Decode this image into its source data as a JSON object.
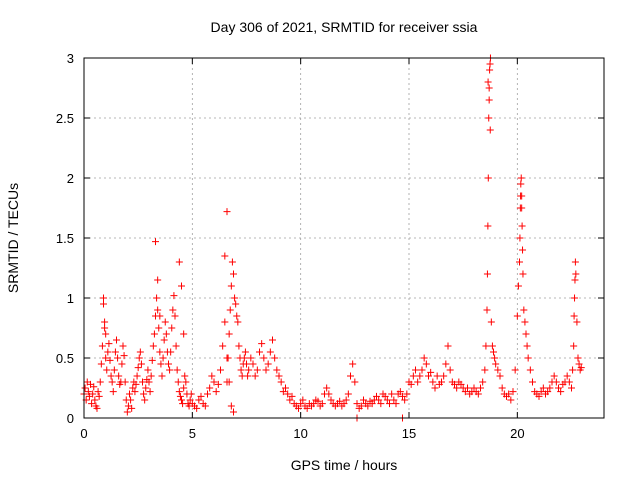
{
  "chart_data": {
    "type": "scatter",
    "title": "Day 306 of 2021, SRMTID for receiver ssia",
    "xlabel": "GPS time / hours",
    "ylabel": "SRMTID / TECUs",
    "xlim": [
      0,
      24
    ],
    "ylim": [
      0,
      3
    ],
    "grid": true,
    "marker": "+",
    "color": "#ff0000",
    "xticks": [
      0,
      5,
      10,
      15,
      20
    ],
    "xtick_labels": [
      "0",
      "5",
      "10",
      "15",
      "20"
    ],
    "yticks": [
      0,
      0.5,
      1,
      1.5,
      2,
      2.5,
      3
    ],
    "ytick_labels": [
      "0",
      "0.5",
      "1",
      "1.5",
      "2",
      "2.5",
      "3"
    ],
    "series": [
      {
        "name": "SRMTID",
        "x": [
          0.0,
          0.05,
          0.1,
          0.15,
          0.2,
          0.25,
          0.3,
          0.35,
          0.4,
          0.45,
          0.5,
          0.55,
          0.6,
          0.65,
          0.7,
          0.75,
          0.8,
          0.85,
          0.9,
          0.95,
          1.0,
          1.05,
          1.1,
          1.15,
          1.2,
          1.25,
          1.3,
          1.35,
          1.4,
          1.45,
          1.5,
          1.55,
          1.6,
          1.65,
          1.7,
          1.75,
          1.8,
          1.85,
          1.9,
          1.95,
          2.0,
          2.05,
          2.1,
          2.15,
          2.2,
          2.25,
          2.3,
          2.35,
          2.4,
          2.45,
          2.5,
          2.55,
          2.6,
          2.65,
          2.7,
          2.75,
          2.8,
          2.85,
          2.9,
          2.95,
          3.0,
          3.05,
          3.1,
          3.15,
          3.2,
          3.25,
          3.3,
          3.35,
          3.4,
          3.45,
          3.5,
          3.55,
          3.6,
          3.65,
          3.7,
          3.75,
          3.8,
          3.85,
          3.9,
          3.95,
          4.0,
          4.05,
          4.1,
          4.15,
          4.2,
          4.25,
          4.3,
          4.35,
          4.4,
          4.45,
          4.5,
          4.55,
          4.6,
          4.65,
          4.7,
          4.75,
          4.8,
          4.85,
          4.9,
          4.95,
          5.0,
          5.1,
          5.2,
          5.3,
          5.4,
          5.5,
          5.6,
          5.7,
          5.8,
          5.9,
          6.0,
          6.1,
          6.2,
          6.3,
          6.4,
          6.5,
          6.6,
          6.7,
          6.8,
          6.9,
          6.6,
          6.65,
          6.7,
          6.75,
          6.8,
          6.85,
          6.9,
          6.95,
          7.0,
          7.05,
          7.1,
          7.15,
          7.2,
          7.25,
          7.3,
          7.35,
          7.4,
          7.45,
          7.5,
          7.55,
          7.6,
          7.7,
          7.8,
          7.9,
          8.0,
          8.1,
          8.2,
          8.3,
          8.4,
          8.5,
          8.6,
          8.7,
          8.8,
          8.9,
          9.0,
          9.1,
          9.2,
          9.3,
          9.4,
          9.5,
          9.6,
          9.7,
          9.8,
          9.9,
          10.0,
          10.1,
          10.2,
          10.3,
          10.4,
          10.5,
          10.6,
          10.7,
          10.8,
          10.9,
          11.0,
          11.1,
          11.2,
          11.3,
          11.4,
          11.5,
          11.6,
          11.7,
          11.8,
          11.9,
          12.0,
          12.1,
          12.2,
          12.3,
          12.4,
          12.5,
          12.6,
          12.7,
          12.8,
          12.9,
          13.0,
          13.1,
          13.2,
          13.3,
          13.4,
          13.5,
          13.6,
          13.7,
          13.8,
          13.9,
          14.0,
          14.1,
          14.2,
          14.3,
          14.4,
          14.5,
          14.6,
          14.7,
          14.8,
          14.9,
          15.0,
          15.1,
          15.2,
          15.3,
          15.4,
          15.5,
          15.6,
          15.7,
          15.8,
          15.9,
          16.0,
          16.1,
          16.2,
          16.3,
          16.4,
          16.5,
          16.6,
          16.7,
          16.8,
          16.9,
          17.0,
          17.1,
          17.2,
          17.3,
          17.4,
          17.5,
          17.6,
          17.7,
          17.8,
          17.9,
          18.0,
          18.1,
          18.2,
          18.3,
          18.4,
          18.5,
          18.55,
          18.6,
          18.62,
          18.64,
          18.66,
          18.68,
          18.7,
          18.72,
          18.74,
          18.76,
          18.8,
          18.85,
          18.9,
          18.95,
          19.0,
          19.1,
          19.2,
          19.3,
          19.4,
          19.5,
          19.6,
          19.7,
          19.8,
          19.9,
          20.0,
          20.05,
          20.1,
          20.12,
          20.14,
          20.16,
          20.18,
          20.2,
          20.22,
          20.24,
          20.26,
          20.3,
          20.35,
          20.4,
          20.45,
          20.5,
          20.6,
          20.7,
          20.8,
          20.9,
          21.0,
          21.1,
          21.2,
          21.3,
          21.4,
          21.5,
          21.6,
          21.7,
          21.8,
          21.9,
          22.0,
          22.1,
          22.2,
          22.3,
          22.4,
          22.5,
          22.55,
          22.6,
          22.62,
          22.64,
          22.66,
          22.68,
          22.7,
          22.75,
          22.8,
          22.85,
          22.9,
          22.95,
          0.9,
          0.95,
          1.0,
          3.3,
          3.4,
          3.5,
          4.4,
          4.5,
          4.6,
          6.5,
          6.6,
          12.6,
          14.7,
          18.65,
          18.7,
          18.75,
          20.15,
          20.2
        ],
        "y": [
          0.2,
          0.25,
          0.15,
          0.3,
          0.22,
          0.18,
          0.28,
          0.12,
          0.2,
          0.26,
          0.15,
          0.1,
          0.08,
          0.22,
          0.18,
          0.3,
          0.45,
          0.6,
          0.95,
          0.75,
          0.5,
          0.4,
          0.55,
          0.62,
          0.48,
          0.35,
          0.3,
          0.22,
          0.4,
          0.55,
          0.65,
          0.5,
          0.35,
          0.28,
          0.3,
          0.45,
          0.6,
          0.52,
          0.3,
          0.15,
          0.05,
          0.1,
          0.2,
          0.15,
          0.08,
          0.25,
          0.3,
          0.22,
          0.28,
          0.35,
          0.42,
          0.5,
          0.55,
          0.45,
          0.3,
          0.2,
          0.15,
          0.25,
          0.32,
          0.4,
          0.3,
          0.22,
          0.35,
          0.48,
          0.6,
          0.7,
          0.85,
          1.0,
          0.9,
          0.75,
          0.55,
          0.45,
          0.35,
          0.5,
          0.65,
          0.8,
          0.7,
          0.55,
          0.45,
          0.4,
          0.55,
          0.75,
          0.9,
          1.02,
          0.85,
          0.6,
          0.4,
          0.3,
          0.22,
          0.18,
          0.15,
          0.12,
          0.25,
          0.35,
          0.3,
          0.2,
          0.12,
          0.1,
          0.15,
          0.2,
          0.12,
          0.1,
          0.08,
          0.15,
          0.18,
          0.12,
          0.1,
          0.2,
          0.25,
          0.35,
          0.3,
          0.22,
          0.28,
          0.4,
          0.6,
          0.8,
          0.5,
          0.3,
          0.1,
          0.05,
          0.3,
          0.5,
          0.7,
          0.9,
          1.1,
          1.3,
          1.2,
          1.0,
          0.95,
          0.85,
          0.8,
          0.6,
          0.5,
          0.4,
          0.35,
          0.45,
          0.5,
          0.55,
          0.45,
          0.35,
          0.4,
          0.5,
          0.45,
          0.35,
          0.4,
          0.55,
          0.62,
          0.5,
          0.4,
          0.45,
          0.55,
          0.65,
          0.5,
          0.4,
          0.35,
          0.3,
          0.22,
          0.25,
          0.2,
          0.15,
          0.18,
          0.12,
          0.1,
          0.08,
          0.12,
          0.15,
          0.1,
          0.08,
          0.12,
          0.1,
          0.12,
          0.15,
          0.14,
          0.1,
          0.12,
          0.2,
          0.25,
          0.2,
          0.15,
          0.12,
          0.1,
          0.12,
          0.14,
          0.1,
          0.12,
          0.15,
          0.2,
          0.35,
          0.45,
          0.3,
          0.12,
          0.08,
          0.1,
          0.15,
          0.12,
          0.1,
          0.14,
          0.12,
          0.15,
          0.18,
          0.15,
          0.12,
          0.2,
          0.18,
          0.15,
          0.12,
          0.2,
          0.15,
          0.12,
          0.2,
          0.22,
          0.18,
          0.15,
          0.2,
          0.3,
          0.28,
          0.35,
          0.4,
          0.3,
          0.35,
          0.4,
          0.5,
          0.45,
          0.35,
          0.38,
          0.3,
          0.25,
          0.35,
          0.28,
          0.3,
          0.35,
          0.45,
          0.6,
          0.4,
          0.3,
          0.28,
          0.25,
          0.3,
          0.28,
          0.25,
          0.22,
          0.25,
          0.2,
          0.22,
          0.25,
          0.22,
          0.2,
          0.25,
          0.3,
          0.4,
          0.6,
          0.9,
          1.2,
          1.6,
          2.0,
          2.5,
          2.75,
          2.9,
          2.95,
          3.0,
          0.8,
          0.6,
          0.55,
          0.5,
          0.45,
          0.4,
          0.35,
          0.25,
          0.2,
          0.18,
          0.2,
          0.15,
          0.22,
          0.4,
          0.85,
          1.1,
          1.3,
          1.5,
          1.75,
          1.95,
          2.0,
          1.85,
          1.6,
          1.4,
          1.2,
          0.9,
          0.8,
          0.7,
          0.6,
          0.5,
          0.4,
          0.3,
          0.22,
          0.2,
          0.18,
          0.22,
          0.25,
          0.2,
          0.22,
          0.25,
          0.3,
          0.35,
          0.3,
          0.25,
          0.22,
          0.28,
          0.3,
          0.35,
          0.3,
          0.25,
          0.4,
          0.6,
          0.85,
          1.0,
          1.15,
          1.3,
          1.2,
          0.8,
          0.5,
          0.45,
          0.4,
          0.42,
          1.0,
          0.8,
          0.7,
          1.47,
          1.15,
          0.85,
          1.3,
          1.1,
          0.7,
          1.35,
          1.72,
          0.0,
          0.0,
          2.8,
          2.65,
          2.4,
          1.85,
          1.75
        ]
      }
    ]
  }
}
